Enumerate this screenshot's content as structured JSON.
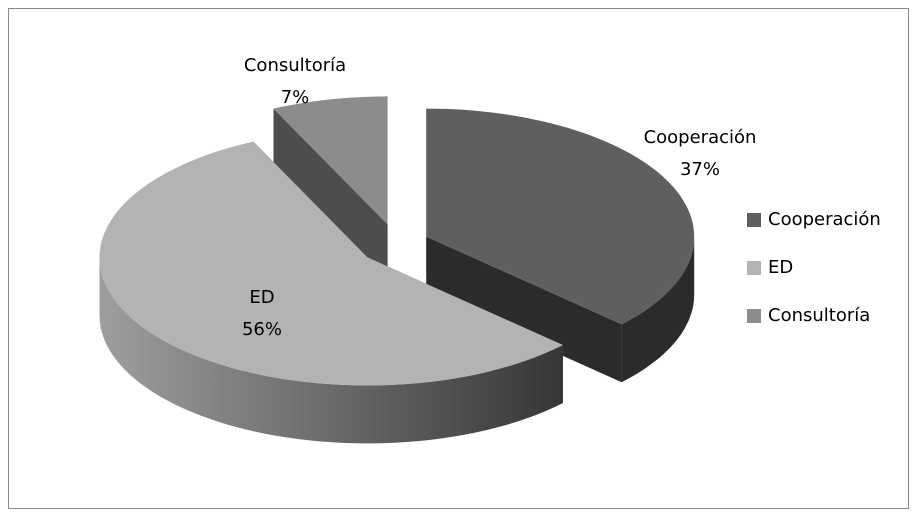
{
  "chart_data": {
    "type": "pie",
    "categories": [
      "Cooperación",
      "ED",
      "Consultoría"
    ],
    "values": [
      37,
      56,
      7
    ],
    "value_labels": [
      "37%",
      "56%",
      "7%"
    ],
    "colors": [
      "#5f5f5f",
      "#b3b3b3",
      "#8c8c8c"
    ],
    "legend": "right"
  }
}
